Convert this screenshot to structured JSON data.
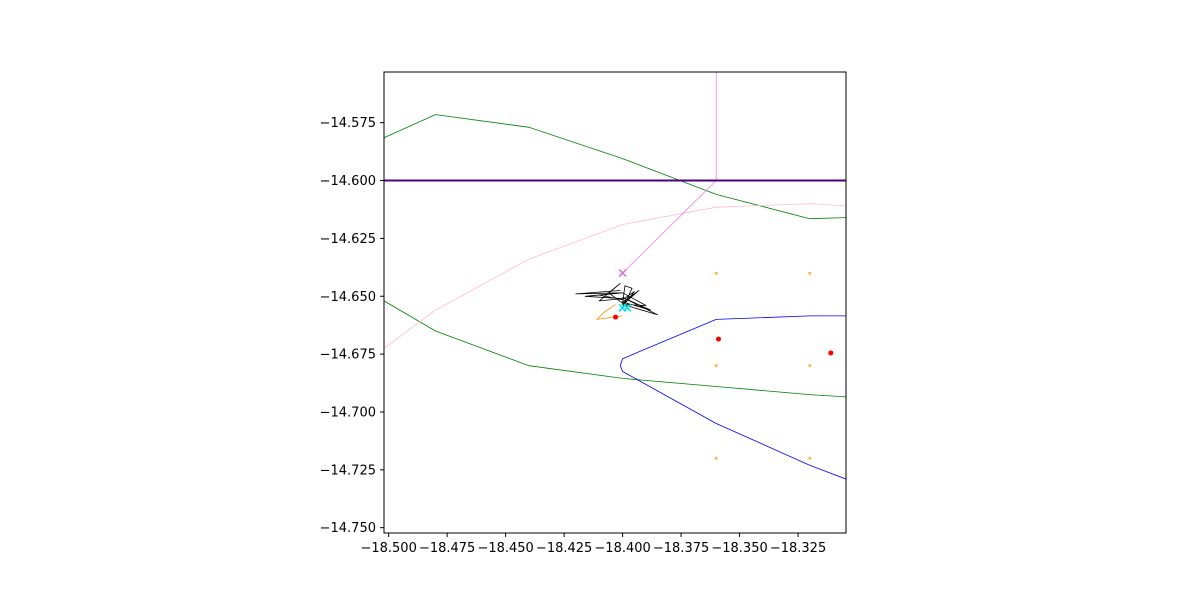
{
  "chart_data": {
    "type": "line",
    "title": "",
    "xlabel": "",
    "ylabel": "",
    "xlim": [
      -18.502,
      -18.3045
    ],
    "ylim": [
      -14.7523,
      -14.5531
    ],
    "grid": false,
    "legend": "none",
    "x_ticks": [
      -18.5,
      -18.475,
      -18.45,
      -18.425,
      -18.4,
      -18.375,
      -18.35,
      -18.325
    ],
    "x_tick_labels": [
      "−18.500",
      "−18.475",
      "−18.450",
      "−18.425",
      "−18.400",
      "−18.375",
      "−18.350",
      "−18.325"
    ],
    "y_ticks": [
      -14.575,
      -14.6,
      -14.625,
      -14.65,
      -14.675,
      -14.7,
      -14.725,
      -14.75
    ],
    "y_tick_labels": [
      "−14.575",
      "−14.600",
      "−14.625",
      "−14.650",
      "−14.675",
      "−14.700",
      "−14.725",
      "−14.750"
    ],
    "series": [
      {
        "kind": "line",
        "color": "#008000",
        "x": [
          -18.502,
          -18.48,
          -18.44,
          -18.4,
          -18.36,
          -18.32,
          -18.3045
        ],
        "y": [
          -14.5815,
          -14.5715,
          -14.577,
          -14.5905,
          -14.606,
          -14.6165,
          -14.616
        ]
      },
      {
        "kind": "line",
        "color": "#008000",
        "x": [
          -18.502,
          -18.48,
          -18.44,
          -18.4,
          -18.36,
          -18.32,
          -18.3045
        ],
        "y": [
          -14.652,
          -14.665,
          -14.68,
          -14.6855,
          -14.689,
          -14.6925,
          -14.6935
        ]
      },
      {
        "kind": "line",
        "color": "#0000ff",
        "x": [
          -18.3045,
          -18.32,
          -18.36,
          -18.4,
          -18.401,
          -18.4,
          -18.36,
          -18.32,
          -18.3045
        ],
        "y": [
          -14.6585,
          -14.6585,
          -14.66,
          -14.677,
          -14.68,
          -14.6825,
          -14.705,
          -14.723,
          -14.729
        ]
      },
      {
        "kind": "line",
        "color": "#ffc0cb",
        "x": [
          -18.502,
          -18.48,
          -18.44,
          -18.4,
          -18.36,
          -18.32,
          -18.3045
        ],
        "y": [
          -14.6725,
          -14.656,
          -14.634,
          -14.619,
          -14.6115,
          -14.61,
          -14.611
        ]
      },
      {
        "kind": "line",
        "color": "#ee82ee",
        "x": [
          -18.36,
          -18.36,
          -18.375,
          -18.4
        ],
        "y": [
          -14.5531,
          -14.6,
          -14.615,
          -14.64
        ]
      },
      {
        "kind": "line",
        "color": "#4b0082",
        "width": 2,
        "x": [
          -18.502,
          -18.3045
        ],
        "y": [
          -14.6,
          -14.6
        ]
      },
      {
        "kind": "line",
        "color": "#ff8c00",
        "x": [
          -18.403,
          -18.408,
          -18.411,
          -18.4
        ],
        "y": [
          -14.6535,
          -14.657,
          -14.66,
          -14.6585
        ]
      },
      {
        "kind": "line",
        "color": "#000000",
        "width": 0.8,
        "x": [
          -18.401,
          -18.42,
          -18.4,
          -18.416,
          -18.4,
          -18.41,
          -18.401,
          -18.406,
          -18.4,
          -18.399,
          -18.396,
          -18.398,
          -18.4,
          -18.393,
          -18.4,
          -18.388,
          -18.4,
          -18.385,
          -18.4,
          -18.39,
          -18.4,
          -18.41,
          -18.4,
          -18.395,
          -18.4
        ],
        "y": [
          -14.6475,
          -14.649,
          -14.6485,
          -14.65,
          -14.651,
          -14.652,
          -14.6445,
          -14.6485,
          -14.653,
          -14.6455,
          -14.6465,
          -14.651,
          -14.6535,
          -14.6475,
          -14.6525,
          -14.656,
          -14.6505,
          -14.658,
          -14.6535,
          -14.654,
          -14.6485,
          -14.6495,
          -14.6515,
          -14.648,
          -14.6545
        ]
      },
      {
        "kind": "scatter",
        "color": "#ff0000",
        "marker": "dot",
        "x": [
          -18.403,
          -18.359,
          -18.311
        ],
        "y": [
          -14.659,
          -14.6685,
          -14.6745
        ]
      },
      {
        "kind": "scatter",
        "color": "#ffb347",
        "marker": "small-dot",
        "x": [
          -18.36,
          -18.32,
          -18.36,
          -18.32,
          -18.36,
          -18.32
        ],
        "y": [
          -14.64,
          -14.64,
          -14.68,
          -14.68,
          -14.72,
          -14.72
        ]
      },
      {
        "kind": "scatter",
        "color": "#da70d6",
        "marker": "x",
        "x": [
          -18.4
        ],
        "y": [
          -14.64
        ]
      },
      {
        "kind": "scatter",
        "color": "#00e5ee",
        "marker": "x",
        "x": [
          -18.4,
          -18.398
        ],
        "y": [
          -14.655,
          -14.655
        ]
      }
    ]
  }
}
